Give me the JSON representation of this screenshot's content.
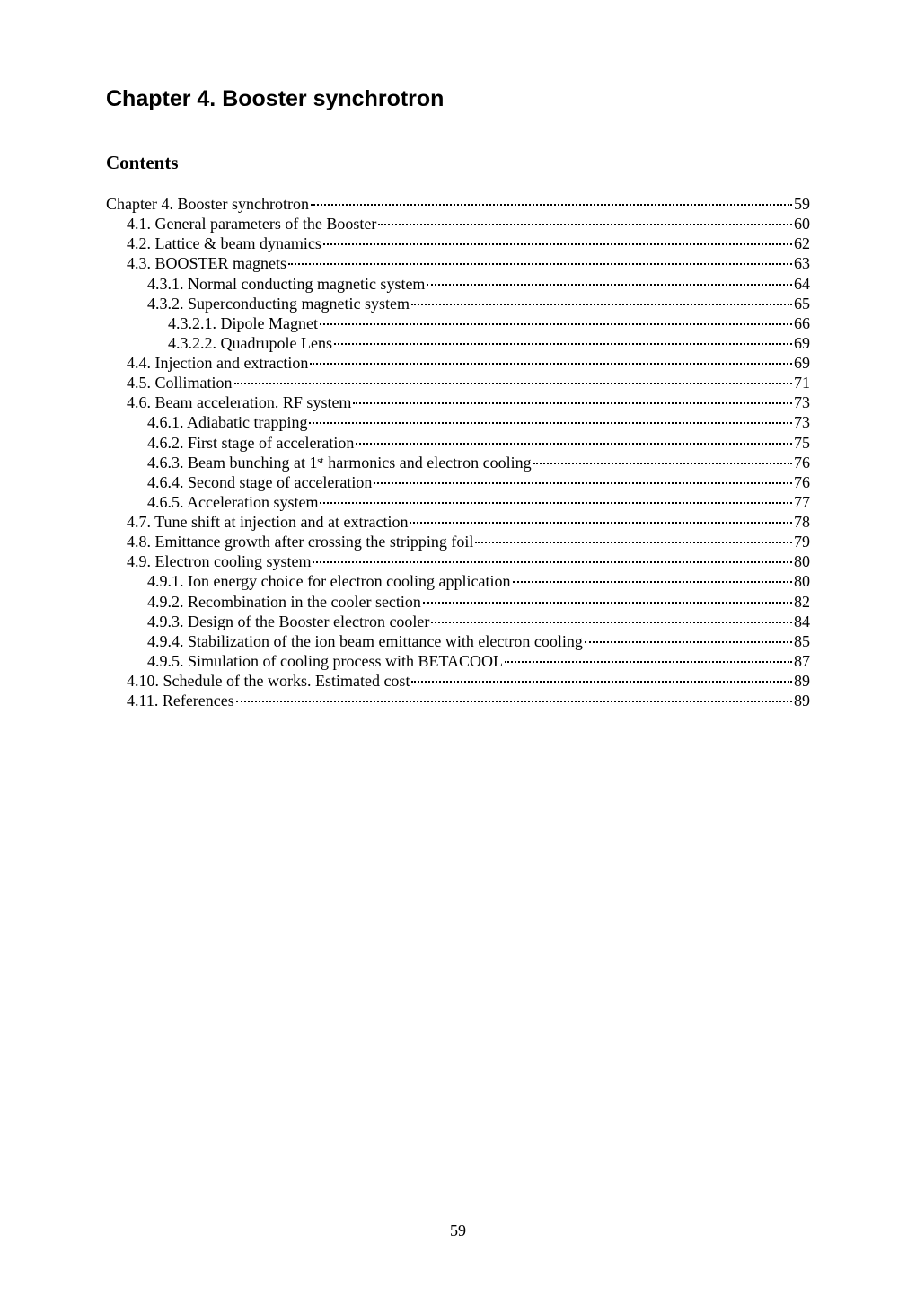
{
  "chapter_title": "Chapter 4. Booster synchrotron",
  "contents_heading": "Contents",
  "page_number": "59",
  "toc": [
    {
      "indent": 0,
      "title": "Chapter 4. Booster synchrotron",
      "page": "59"
    },
    {
      "indent": 1,
      "title": "4.1. General parameters of the Booster",
      "page": "60"
    },
    {
      "indent": 1,
      "title": "4.2. Lattice & beam dynamics",
      "page": "62"
    },
    {
      "indent": 1,
      "title": "4.3. BOOSTER magnets",
      "page": "63"
    },
    {
      "indent": 2,
      "title": "4.3.1. Normal conducting magnetic system",
      "page": "64"
    },
    {
      "indent": 2,
      "title": "4.3.2. Superconducting magnetic system",
      "page": "65"
    },
    {
      "indent": 3,
      "title": "4.3.2.1. Dipole Magnet",
      "page": "66"
    },
    {
      "indent": 3,
      "title": "4.3.2.2. Quadrupole Lens",
      "page": "69"
    },
    {
      "indent": 1,
      "title": "4.4. Injection and extraction",
      "page": "69"
    },
    {
      "indent": 1,
      "title": "4.5. Collimation",
      "page": "71"
    },
    {
      "indent": 1,
      "title": "4.6. Beam acceleration. RF system",
      "page": "73"
    },
    {
      "indent": 2,
      "title": "4.6.1. Adiabatic trapping",
      "page": "73"
    },
    {
      "indent": 2,
      "title": "4.6.2. First stage of acceleration",
      "page": "75"
    },
    {
      "indent": 2,
      "title": "4.6.3. Beam bunching at 1ˢᵗ harmonics and electron cooling",
      "page": "76"
    },
    {
      "indent": 2,
      "title": "4.6.4. Second stage of acceleration",
      "page": "76"
    },
    {
      "indent": 2,
      "title": "4.6.5. Acceleration system",
      "page": "77"
    },
    {
      "indent": 1,
      "title": "4.7. Tune shift at injection and at extraction",
      "page": "78"
    },
    {
      "indent": 1,
      "title": "4.8. Emittance growth after crossing the stripping foil",
      "page": "79"
    },
    {
      "indent": 1,
      "title": "4.9. Electron cooling system",
      "page": "80"
    },
    {
      "indent": 2,
      "title": "4.9.1. Ion energy choice for electron cooling application",
      "page": "80"
    },
    {
      "indent": 2,
      "title": "4.9.2. Recombination in the cooler section",
      "page": "82"
    },
    {
      "indent": 2,
      "title": "4.9.3. Design of the Booster electron cooler",
      "page": "84"
    },
    {
      "indent": 2,
      "title": "4.9.4. Stabilization of the ion beam emittance with electron cooling",
      "page": "85"
    },
    {
      "indent": 2,
      "title": "4.9.5. Simulation of cooling process with BETACOOL",
      "page": "87"
    },
    {
      "indent": 1,
      "title": "4.10. Schedule of the works. Estimated cost",
      "page": "89"
    },
    {
      "indent": 1,
      "title": "4.11. References",
      "page": "89"
    }
  ]
}
